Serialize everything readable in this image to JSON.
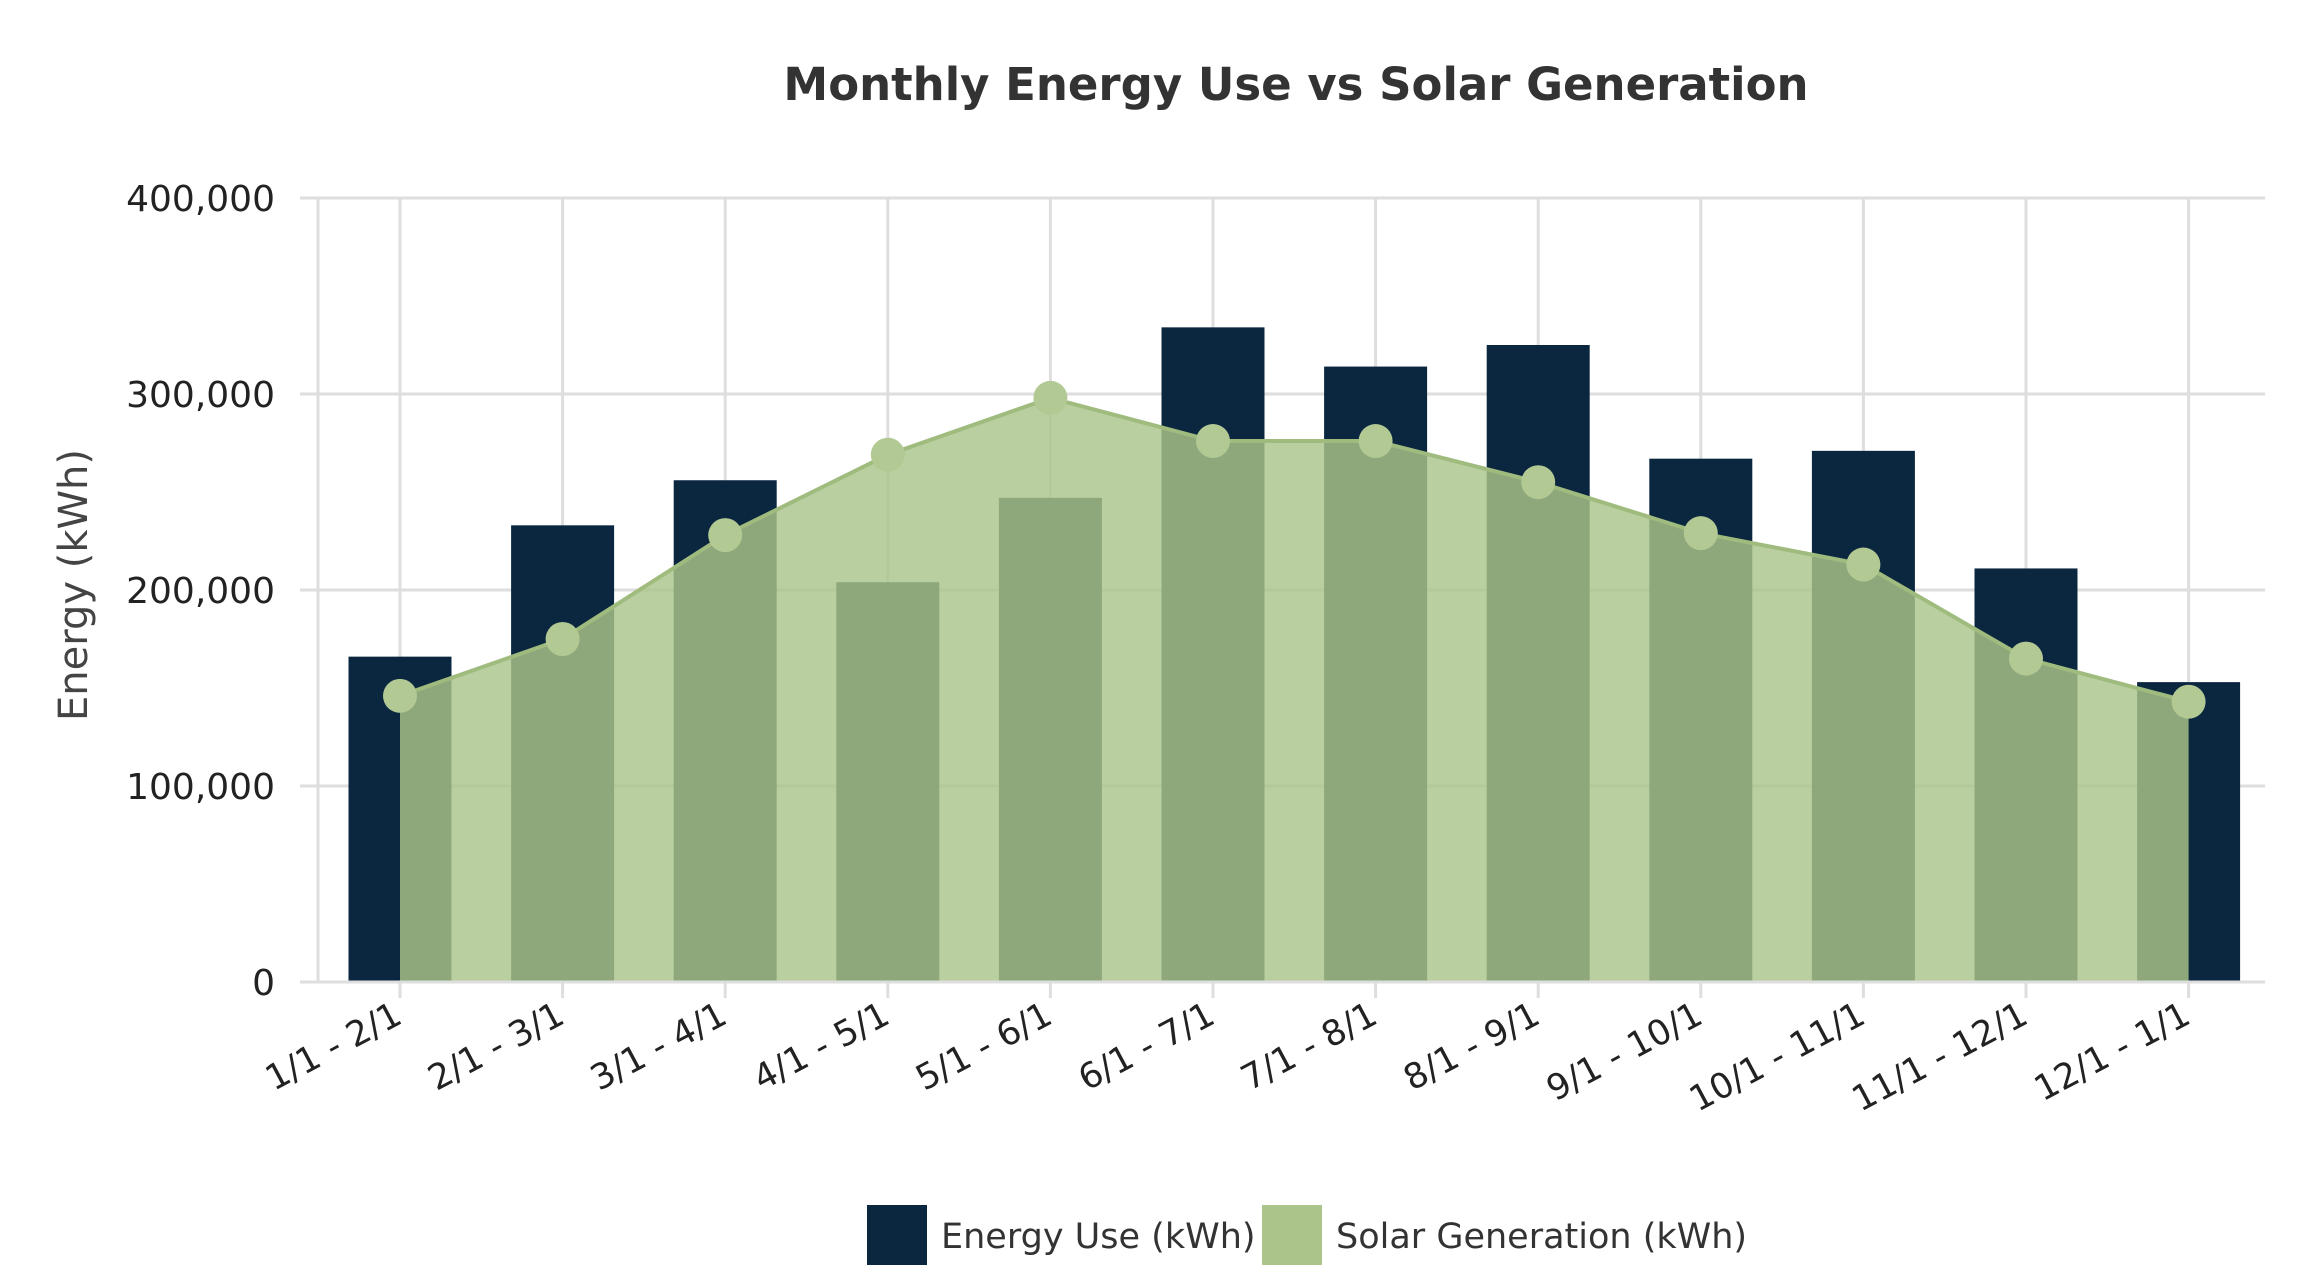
{
  "chart_data": {
    "type": "bar",
    "title": "Monthly Energy Use vs Solar Generation",
    "xlabel": "",
    "ylabel": "Energy (kWh)",
    "ylim": [
      0,
      400000
    ],
    "yticks": [
      0,
      100000,
      200000,
      300000,
      400000
    ],
    "ytick_labels": [
      "0",
      "100,000",
      "200,000",
      "300,000",
      "400,000"
    ],
    "grid": true,
    "legend_position": "bottom-center",
    "categories": [
      "1/1 - 2/1",
      "2/1 - 3/1",
      "3/1 - 4/1",
      "4/1 - 5/1",
      "5/1 - 6/1",
      "6/1 - 7/1",
      "7/1 - 8/1",
      "8/1 - 9/1",
      "9/1 - 10/1",
      "10/1 - 11/1",
      "11/1 - 12/1",
      "12/1 - 1/1"
    ],
    "series": [
      {
        "name": "Energy Use (kWh)",
        "type": "bar",
        "color": "#0b2740",
        "values": [
          166000,
          233000,
          256000,
          204000,
          247000,
          334000,
          314000,
          325000,
          267000,
          271000,
          211000,
          153000
        ]
      },
      {
        "name": "Solar Generation (kWh)",
        "type": "area",
        "color": "#abc48a",
        "values": [
          146000,
          175000,
          228000,
          269000,
          298000,
          276000,
          276000,
          255000,
          229000,
          213000,
          165000,
          143000
        ]
      }
    ]
  }
}
